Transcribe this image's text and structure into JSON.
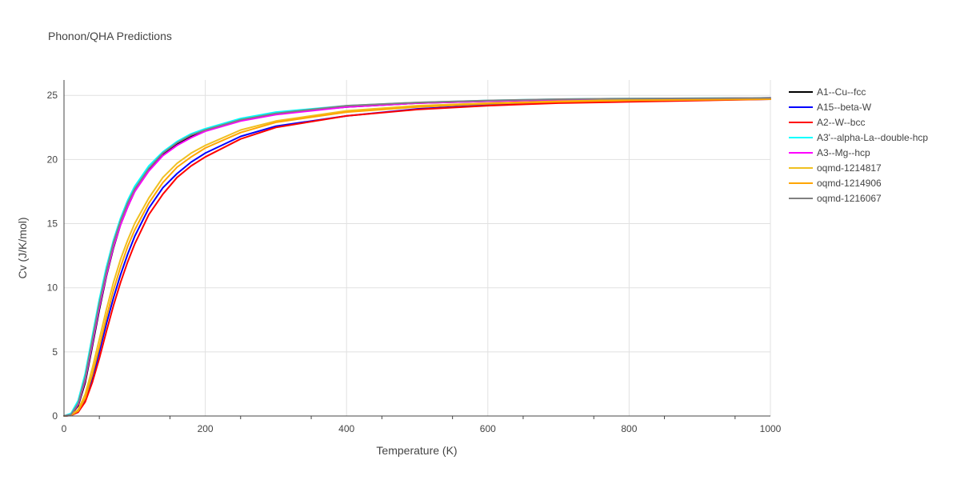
{
  "chart_data": {
    "type": "line",
    "title": "Phonon/QHA Predictions",
    "xlabel": "Temperature (K)",
    "ylabel": "Cv (J/K/mol)",
    "xlim": [
      0,
      1000
    ],
    "ylim": [
      0,
      26.2
    ],
    "xticks": [
      0,
      200,
      400,
      600,
      800,
      1000
    ],
    "yticks": [
      0,
      5,
      10,
      15,
      20,
      25
    ],
    "grid": true,
    "legend_position": "top-right outside",
    "series": [
      {
        "name": "A1--Cu--fcc",
        "color": "#000000",
        "x": [
          0,
          10,
          20,
          30,
          40,
          50,
          60,
          70,
          80,
          90,
          100,
          120,
          140,
          160,
          180,
          200,
          250,
          300,
          400,
          500,
          600,
          700,
          800,
          1000
        ],
        "y": [
          0,
          0.1,
          0.8,
          2.6,
          5.4,
          8.3,
          10.9,
          13.1,
          14.9,
          16.3,
          17.5,
          19.2,
          20.4,
          21.2,
          21.8,
          22.3,
          23.1,
          23.6,
          24.1,
          24.4,
          24.55,
          24.65,
          24.7,
          24.8
        ]
      },
      {
        "name": "A15--beta-W",
        "color": "#0000ff",
        "x": [
          0,
          10,
          20,
          30,
          40,
          50,
          60,
          70,
          80,
          90,
          100,
          120,
          140,
          160,
          180,
          200,
          250,
          300,
          400,
          500,
          600,
          700,
          800,
          1000
        ],
        "y": [
          0,
          0.05,
          0.3,
          1.2,
          2.9,
          5.0,
          7.2,
          9.2,
          11.0,
          12.6,
          14.0,
          16.2,
          17.8,
          18.9,
          19.8,
          20.5,
          21.8,
          22.6,
          23.4,
          23.95,
          24.25,
          24.45,
          24.55,
          24.7
        ]
      },
      {
        "name": "A2--W--bcc",
        "color": "#ff0000",
        "x": [
          0,
          10,
          20,
          30,
          40,
          50,
          60,
          70,
          80,
          90,
          100,
          120,
          140,
          160,
          180,
          200,
          250,
          300,
          400,
          500,
          600,
          700,
          800,
          1000
        ],
        "y": [
          0,
          0.05,
          0.3,
          1.1,
          2.6,
          4.5,
          6.6,
          8.6,
          10.4,
          12.0,
          13.4,
          15.7,
          17.3,
          18.6,
          19.5,
          20.2,
          21.6,
          22.5,
          23.4,
          23.9,
          24.2,
          24.4,
          24.5,
          24.7
        ]
      },
      {
        "name": "A3'--alpha-La--double-hcp",
        "color": "#00ffff",
        "x": [
          0,
          10,
          20,
          30,
          40,
          50,
          60,
          70,
          80,
          90,
          100,
          120,
          140,
          160,
          180,
          200,
          250,
          300,
          400,
          500,
          600,
          700,
          800,
          1000
        ],
        "y": [
          0,
          0.2,
          1.2,
          3.3,
          6.2,
          9.1,
          11.6,
          13.7,
          15.4,
          16.8,
          17.9,
          19.5,
          20.6,
          21.4,
          22.0,
          22.4,
          23.2,
          23.7,
          24.2,
          24.45,
          24.6,
          24.7,
          24.75,
          24.8
        ]
      },
      {
        "name": "A3--Mg--hcp",
        "color": "#ff00ff",
        "x": [
          0,
          10,
          20,
          30,
          40,
          50,
          60,
          70,
          80,
          90,
          100,
          120,
          140,
          160,
          180,
          200,
          250,
          300,
          400,
          500,
          600,
          700,
          800,
          1000
        ],
        "y": [
          0,
          0.1,
          0.9,
          2.8,
          5.6,
          8.5,
          11.0,
          13.2,
          14.9,
          16.3,
          17.5,
          19.1,
          20.3,
          21.1,
          21.7,
          22.2,
          23.0,
          23.5,
          24.1,
          24.4,
          24.55,
          24.65,
          24.7,
          24.8
        ]
      },
      {
        "name": "oqmd-1214817",
        "color": "#f0c020",
        "x": [
          0,
          10,
          20,
          30,
          40,
          50,
          60,
          70,
          80,
          90,
          100,
          120,
          140,
          160,
          180,
          200,
          250,
          300,
          400,
          500,
          600,
          700,
          800,
          1000
        ],
        "y": [
          0,
          0.08,
          0.5,
          1.7,
          3.7,
          6.0,
          8.3,
          10.4,
          12.2,
          13.7,
          15.0,
          17.0,
          18.6,
          19.7,
          20.5,
          21.1,
          22.3,
          23.0,
          23.8,
          24.2,
          24.4,
          24.55,
          24.65,
          24.75
        ]
      },
      {
        "name": "oqmd-1214906",
        "color": "#ffa500",
        "x": [
          0,
          10,
          20,
          30,
          40,
          50,
          60,
          70,
          80,
          90,
          100,
          120,
          140,
          160,
          180,
          200,
          250,
          300,
          400,
          500,
          600,
          700,
          800,
          1000
        ],
        "y": [
          0,
          0.06,
          0.4,
          1.4,
          3.2,
          5.4,
          7.7,
          9.8,
          11.6,
          13.2,
          14.5,
          16.6,
          18.2,
          19.4,
          20.2,
          20.9,
          22.1,
          22.9,
          23.7,
          24.1,
          24.35,
          24.5,
          24.6,
          24.7
        ]
      },
      {
        "name": "oqmd-1216067",
        "color": "#808080",
        "x": [
          0,
          10,
          20,
          30,
          40,
          50,
          60,
          70,
          80,
          90,
          100,
          120,
          140,
          160,
          180,
          200,
          250,
          300,
          400,
          500,
          600,
          700,
          800,
          1000
        ],
        "y": [
          0,
          0.1,
          1.0,
          3.0,
          5.9,
          8.8,
          11.3,
          13.5,
          15.2,
          16.6,
          17.7,
          19.3,
          20.5,
          21.3,
          21.9,
          22.3,
          23.1,
          23.6,
          24.2,
          24.45,
          24.6,
          24.7,
          24.75,
          24.8
        ]
      }
    ]
  }
}
